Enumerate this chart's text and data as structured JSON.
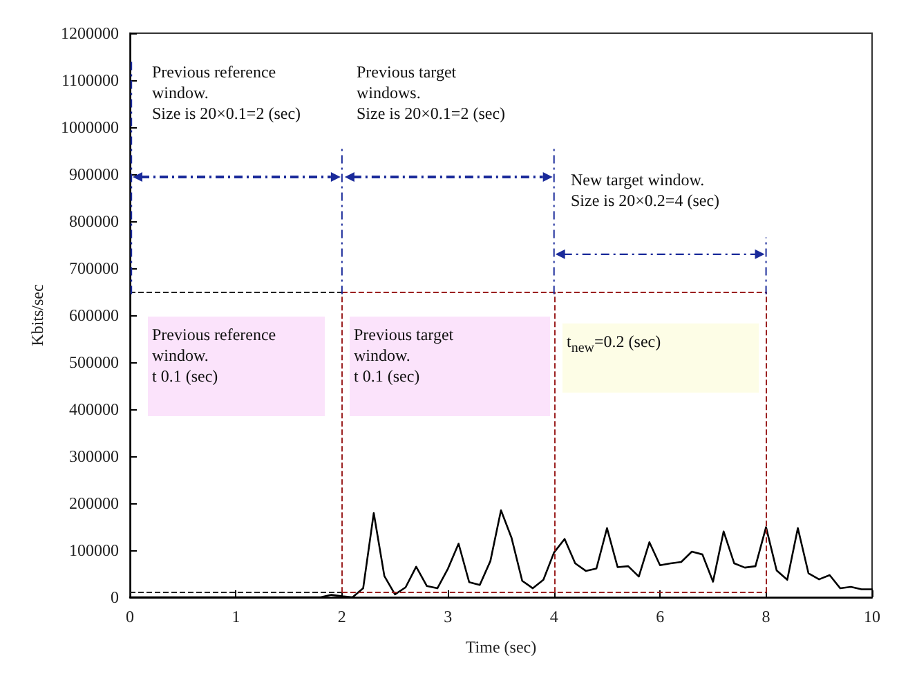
{
  "chart_data": {
    "type": "line",
    "xlabel": "Time (sec)",
    "ylabel": "Kbits/sec",
    "categories": [
      "0",
      null,
      null,
      null,
      null,
      null,
      null,
      null,
      null,
      null,
      "1",
      null,
      null,
      null,
      null,
      null,
      null,
      null,
      null,
      null,
      "2",
      null,
      null,
      null,
      null,
      null,
      null,
      null,
      null,
      null,
      "3",
      null,
      null,
      null,
      null,
      null,
      null,
      null,
      null,
      null,
      "4",
      null,
      null,
      null,
      null,
      null,
      null,
      null,
      null,
      null,
      "6",
      null,
      null,
      null,
      null,
      null,
      null,
      null,
      null,
      null,
      "8",
      null,
      null,
      null,
      null,
      null,
      null,
      null,
      null,
      null,
      "10"
    ],
    "series": [
      {
        "color": "#000000",
        "values": [
          0,
          0,
          0,
          0,
          0,
          0,
          0,
          0,
          0,
          0,
          0,
          0,
          0,
          0,
          0,
          0,
          0,
          0,
          0,
          5000,
          2000,
          0,
          19000,
          179000,
          45000,
          6000,
          21000,
          65000,
          24000,
          19000,
          61000,
          114000,
          32000,
          26000,
          77000,
          185000,
          126000,
          35000,
          19000,
          37000,
          95000,
          124000,
          72000,
          56000,
          61000,
          147000,
          64000,
          66000,
          44000,
          117000,
          68000,
          72000,
          75000,
          97000,
          91000,
          33000,
          140000,
          72000,
          63000,
          66000,
          149000,
          57000,
          37000,
          147000,
          51000,
          38000,
          47000,
          19000,
          22000,
          17000,
          17000
        ]
      }
    ],
    "ylim": [
      0,
      1200000
    ],
    "yticks": [
      0,
      100000,
      200000,
      300000,
      400000,
      500000,
      600000,
      700000,
      800000,
      900000,
      1000000,
      1100000,
      1200000
    ],
    "grid": false,
    "marker": "none",
    "line_style": "solid",
    "ref_lines": [
      {
        "axis": "y",
        "value": 650000,
        "color": "#222222",
        "line_style": "dashed"
      },
      {
        "axis": "y",
        "value": 10000,
        "color": "#222222",
        "line_style": "dashed"
      },
      {
        "axis": "y",
        "value": 650000,
        "color": "#9b2020",
        "line_style": "dashed"
      },
      {
        "axis": "y",
        "value": 10000,
        "color": "#9b2020",
        "line_style": "dashed"
      },
      {
        "axis": "x",
        "value": "2",
        "color": "#9b2020",
        "line_style": "dashed"
      },
      {
        "axis": "x",
        "value": "4",
        "color": "#9b2020",
        "line_style": "dashed"
      },
      {
        "axis": "x",
        "value": "8",
        "color": "#9b2020",
        "line_style": "dashed"
      }
    ],
    "annotations": [
      "Previous reference\nwindow.\nSize is 20×0.1=2 (sec)",
      "Previous target\nwindows.\nSize is 20×0.1=2 (sec)",
      "New target window.\nSize is 20×0.2=4 (sec)",
      "Previous reference\nwindow.\nt  0.1 (sec)",
      "Previous target\nwindow.\nt  0.1 (sec)",
      "t$_{new}$=0.2 (sec)"
    ]
  }
}
